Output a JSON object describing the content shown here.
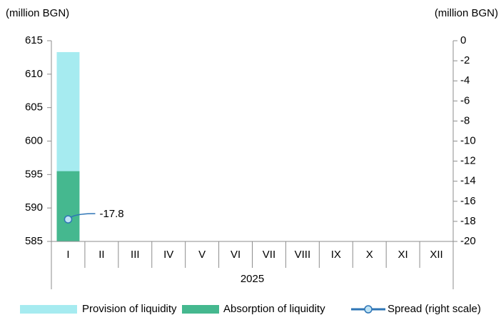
{
  "chart_data": {
    "type": "bar",
    "ylabel": "(million BGN)",
    "y2label": "(million BGN)",
    "categories": [
      "I",
      "II",
      "III",
      "IV",
      "V",
      "VI",
      "VII",
      "VIII",
      "IX",
      "X",
      "XI",
      "XII"
    ],
    "group_label": "2025",
    "series": [
      {
        "name": "Provision of liquidity",
        "type": "bar",
        "color": "#a6ebf0",
        "values": [
          613.3,
          null,
          null,
          null,
          null,
          null,
          null,
          null,
          null,
          null,
          null,
          null
        ]
      },
      {
        "name": "Absorption of liquidity",
        "type": "bar",
        "color": "#45b88f",
        "values": [
          595.5,
          null,
          null,
          null,
          null,
          null,
          null,
          null,
          null,
          null,
          null,
          null
        ]
      },
      {
        "name": "Spread (right scale)",
        "type": "line",
        "axis": "y2",
        "color": "#2e75b6",
        "values": [
          -17.8,
          null,
          null,
          null,
          null,
          null,
          null,
          null,
          null,
          null,
          null,
          null
        ]
      }
    ],
    "ylim": [
      585,
      615
    ],
    "yticks": [
      585,
      590,
      595,
      600,
      605,
      610,
      615
    ],
    "y2lim": [
      -20,
      0
    ],
    "y2ticks": [
      0,
      -2,
      -4,
      -6,
      -8,
      -10,
      -12,
      -14,
      -16,
      -18,
      -20
    ],
    "data_labels": true,
    "legend": "bottom"
  }
}
